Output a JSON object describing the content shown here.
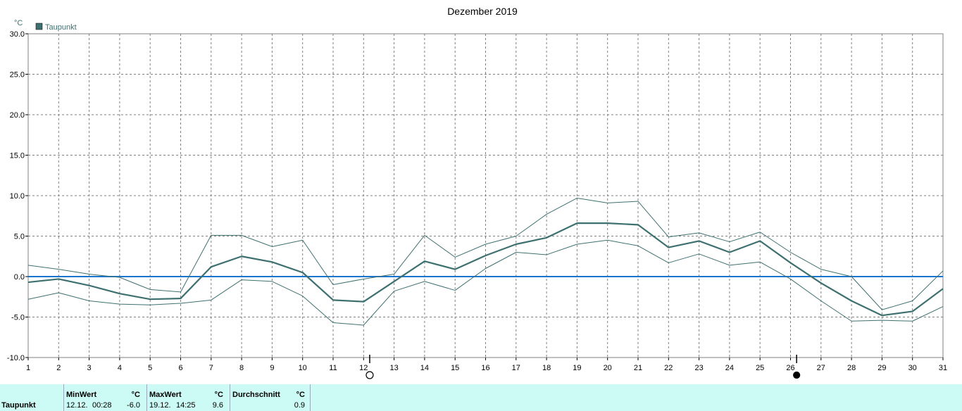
{
  "chart_data": {
    "type": "line",
    "title": "Dezember 2019",
    "ylabel": "°C",
    "xlabel": "",
    "ylim": [
      -10,
      30
    ],
    "yticks": [
      "30.0",
      "25.0",
      "20.0",
      "15.0",
      "10.0",
      "5.0",
      "0.0",
      "-5.0",
      "-10.0"
    ],
    "ytick_values": [
      30,
      25,
      20,
      15,
      10,
      5,
      0,
      -5,
      -10
    ],
    "x": [
      1,
      2,
      3,
      4,
      5,
      6,
      7,
      8,
      9,
      10,
      11,
      12,
      13,
      14,
      15,
      16,
      17,
      18,
      19,
      20,
      21,
      22,
      23,
      24,
      25,
      26,
      27,
      28,
      29,
      30,
      31
    ],
    "grid": true,
    "legend": {
      "position": "top-left",
      "entries": [
        "Taupunkt"
      ]
    },
    "series": [
      {
        "name": "Taupunkt",
        "role": "mean",
        "color": "#3f7070",
        "values": [
          -0.7,
          -0.3,
          -1.1,
          -2.1,
          -2.8,
          -2.7,
          1.2,
          2.5,
          1.8,
          0.5,
          -2.9,
          -3.1,
          -0.6,
          1.9,
          0.9,
          2.6,
          4.0,
          4.8,
          6.6,
          6.6,
          6.4,
          3.6,
          4.4,
          3.0,
          4.4,
          1.7,
          -0.8,
          -3.0,
          -4.8,
          -4.3,
          -1.5
        ]
      },
      {
        "role": "max",
        "color": "#3f7070",
        "values": [
          1.4,
          0.9,
          0.3,
          -0.1,
          -1.6,
          -1.9,
          5.1,
          5.1,
          3.7,
          4.5,
          -1.0,
          -0.3,
          0.3,
          5.1,
          2.4,
          4.0,
          5.0,
          7.7,
          9.7,
          9.1,
          9.3,
          4.9,
          5.4,
          4.3,
          5.5,
          3.0,
          0.9,
          0.0,
          -4.1,
          -3.0,
          0.7
        ]
      },
      {
        "role": "min",
        "color": "#3f7070",
        "values": [
          -2.8,
          -2.0,
          -3.0,
          -3.4,
          -3.5,
          -3.3,
          -2.9,
          -0.4,
          -0.6,
          -2.4,
          -5.7,
          -6.0,
          -1.8,
          -0.6,
          -1.7,
          1.0,
          3.0,
          2.7,
          4.0,
          4.5,
          3.8,
          1.7,
          2.8,
          1.4,
          1.8,
          -0.3,
          -3.0,
          -5.5,
          -5.4,
          -5.5,
          -3.7
        ]
      }
    ],
    "reference_line": {
      "y": 0,
      "color": "#1874cd"
    },
    "moon_phases": [
      {
        "phase": "full",
        "x": 12.2
      },
      {
        "phase": "new",
        "x": 26.2
      }
    ]
  },
  "stats": {
    "row_label": "Taupunkt",
    "min": {
      "header": "MinWert",
      "unit": "°C",
      "date": "12.12.",
      "time": "00:28",
      "value": "-6.0"
    },
    "max": {
      "header": "MaxWert",
      "unit": "°C",
      "date": "19.12.",
      "time": "14:25",
      "value": "9.6"
    },
    "avg": {
      "header": "Durchschnitt",
      "unit": "°C",
      "value": "0.9"
    }
  }
}
